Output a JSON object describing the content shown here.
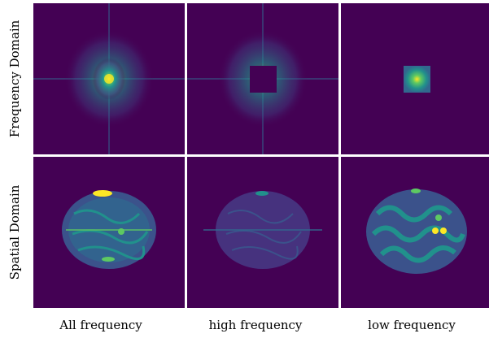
{
  "row_labels": [
    "Frequency Domain",
    "Spatial Domain"
  ],
  "col_labels": [
    "All frequency",
    "high frequency",
    "low frequency"
  ],
  "colors": {
    "background_dark": "#440154",
    "mid_teal": "#21918c",
    "bright_green": "#5ec962",
    "yellow": "#fde725"
  },
  "panels": [
    {
      "row": 0,
      "col": 0,
      "content": "full spectrum"
    },
    {
      "row": 0,
      "col": 1,
      "content": "spectrum with center masked"
    },
    {
      "row": 0,
      "col": 2,
      "content": "center of spectrum only"
    },
    {
      "row": 1,
      "col": 0,
      "content": "brain MRI slice"
    },
    {
      "row": 1,
      "col": 1,
      "content": "edge detail brain image"
    },
    {
      "row": 1,
      "col": 2,
      "content": "blurred brain image"
    }
  ]
}
